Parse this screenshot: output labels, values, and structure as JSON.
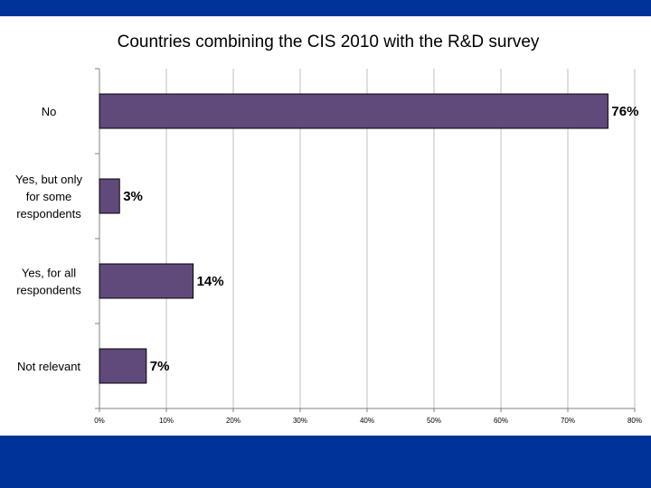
{
  "chart_data": {
    "type": "bar",
    "orientation": "horizontal",
    "title": "Countries combining the CIS 2010 with the R&D survey",
    "categories": [
      [
        "No"
      ],
      [
        "Yes, but only",
        "for some",
        "respondents"
      ],
      [
        "Yes, for all",
        "respondents"
      ],
      [
        "Not relevant"
      ]
    ],
    "values": [
      76,
      3,
      14,
      7
    ],
    "data_labels": [
      "76%",
      "3%",
      "14%",
      "7%"
    ],
    "xlim": [
      0,
      80
    ],
    "x_ticks": [
      "0%",
      "10%",
      "20%",
      "30%",
      "40%",
      "50%",
      "60%",
      "70%",
      "80%"
    ],
    "grid": "vertical",
    "bar_color": "#604A7B",
    "bar_edge_color": "#000000"
  },
  "colors": {
    "band": "#003399",
    "gridline": "#BFBFBF"
  }
}
